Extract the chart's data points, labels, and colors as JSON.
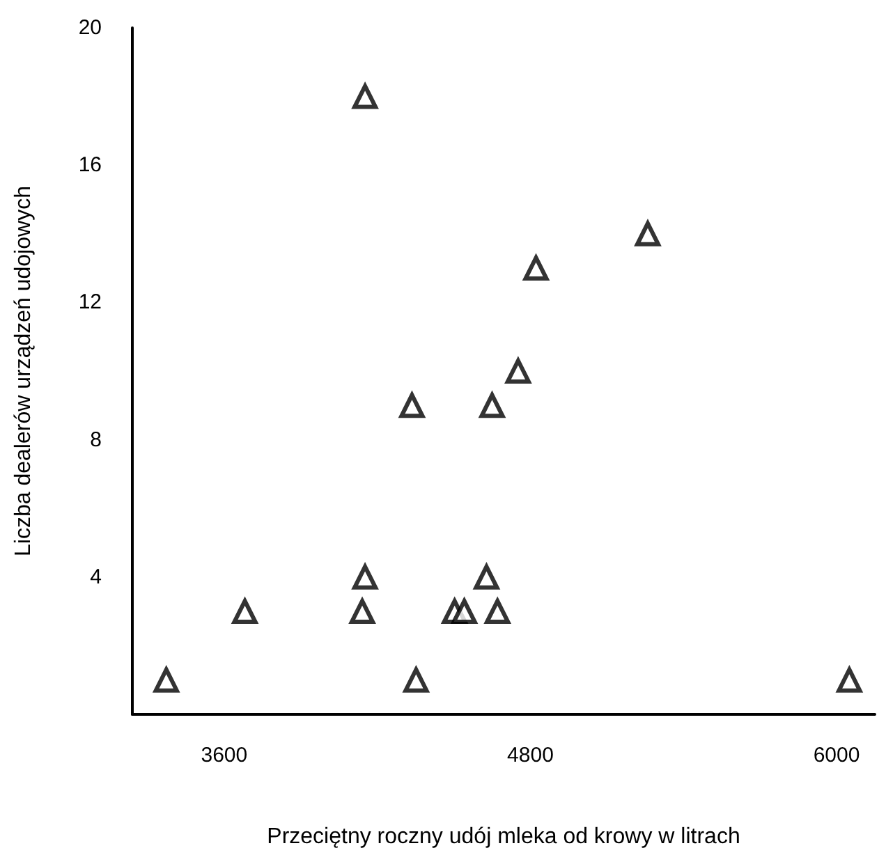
{
  "chart_data": {
    "type": "scatter",
    "xlabel": "Przeciętny roczny udój mleka od krowy w litrach",
    "ylabel": "Liczba dealerów urządzeń udojowych",
    "x": [
      3373,
      3681,
      4152,
      4152,
      4141,
      4336,
      4352,
      4503,
      4541,
      4628,
      4650,
      4671,
      4752,
      4822,
      5260,
      6050
    ],
    "series": [
      {
        "color": "#000000",
        "values": [
          1,
          3,
          18,
          4,
          3,
          9,
          1,
          3,
          3,
          4,
          9,
          3,
          10,
          13,
          14,
          1
        ]
      }
    ],
    "xlim": [
      3240,
      6150
    ],
    "xticks": [
      3600,
      4800,
      6000
    ],
    "ylim": [
      0,
      20
    ],
    "yticks": [
      4,
      8,
      12,
      16,
      20
    ],
    "grid": false,
    "marker": "triangle"
  }
}
